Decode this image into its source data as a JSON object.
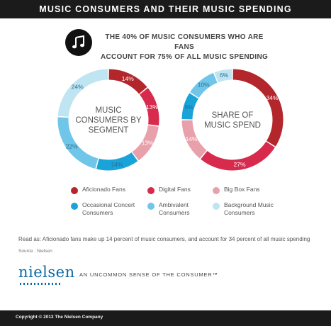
{
  "banner_title": "MUSIC CONSUMERS AND THEIR MUSIC SPENDING",
  "headline": {
    "line1": "THE 40% OF MUSIC CONSUMERS WHO ARE  FANS",
    "line2": "ACCOUNT FOR 75% OF ALL MUSIC SPENDING",
    "icon": "music-note-icon"
  },
  "chart_data": [
    {
      "type": "pie",
      "title": "MUSIC CONSUMERS BY SEGMENT",
      "title_lines": [
        "MUSIC",
        "CONSUMERS BY",
        "SEGMENT"
      ],
      "labels": [
        "Aficionado Fans",
        "Digital Fans",
        "Big Box Fans",
        "Occasional Concert Consumers",
        "Ambivalent Consumers",
        "Background Music Consumers"
      ],
      "values": [
        14,
        13,
        13,
        14,
        22,
        24
      ],
      "data_labels": [
        "14%",
        "13%",
        "13%",
        "14%",
        "22%",
        "24%"
      ]
    },
    {
      "type": "pie",
      "title": "SHARE OF MUSIC SPEND",
      "title_lines": [
        "SHARE OF",
        "MUSIC SPEND"
      ],
      "labels": [
        "Aficionado Fans",
        "Digital Fans",
        "Big Box Fans",
        "Occasional Concert Consumers",
        "Ambivalent Consumers",
        "Background Music Consumers"
      ],
      "values": [
        34,
        27,
        14,
        9,
        10,
        6
      ],
      "data_labels": [
        "34%",
        "27%",
        "14%",
        "9%",
        "10%",
        "6%"
      ]
    }
  ],
  "colors": [
    "#b3262b",
    "#d72a4c",
    "#e8a0ab",
    "#1aa3d9",
    "#6fc6e8",
    "#bfe4f2"
  ],
  "legend": [
    {
      "line1": "Aficionado Fans",
      "line2": ""
    },
    {
      "line1": "Digital Fans",
      "line2": ""
    },
    {
      "line1": "Big Box Fans",
      "line2": ""
    },
    {
      "line1": "Occasional Concert",
      "line2": "Consumers"
    },
    {
      "line1": "Ambivalent",
      "line2": "Consumers"
    },
    {
      "line1": "Background Music",
      "line2": "Consumers"
    }
  ],
  "read_as": "Read as: Aficionado fans make up 14 percent of music consumers, and account for 34 percent of all music spending",
  "source": "Source : Nielsen",
  "logo": "nielsen",
  "tagline": "AN UNCOMMON SENSE OF THE CONSUMER™",
  "footer": "Copyright © 2013 The Nielsen Company"
}
